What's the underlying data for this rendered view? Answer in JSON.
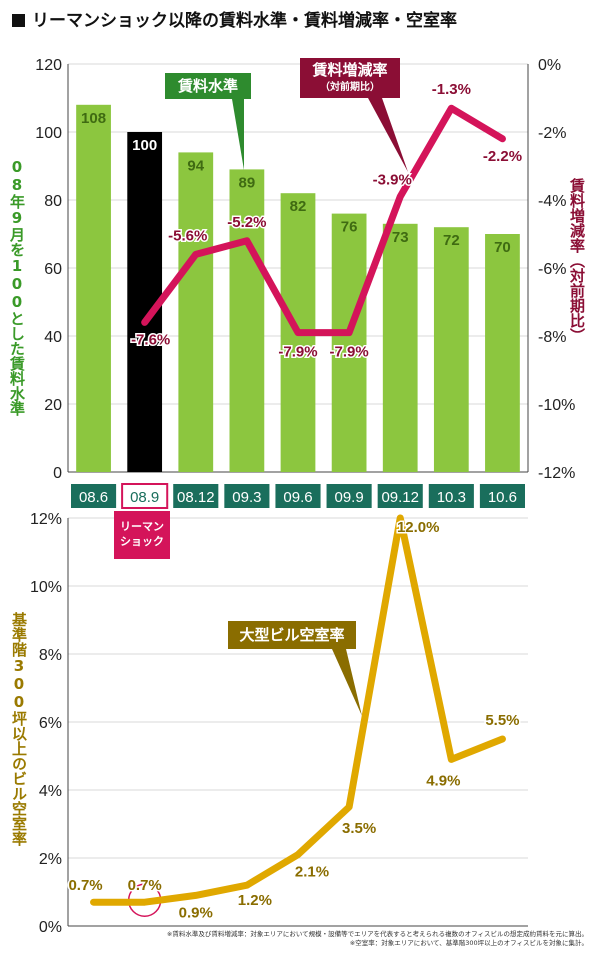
{
  "title": "リーマンショック以降の賃料水準・賃料増減率・空室率",
  "colors": {
    "bar": "#8cc63f",
    "bar_highlight": "#000000",
    "rent_line": "#d4145a",
    "rent_label": "#8b0e35",
    "vacancy_line": "#e0a800",
    "vacancy_label": "#8a6d00",
    "rent_level_label": "#3a9a28",
    "category_box": "#1a6e5c"
  },
  "top_left_axis_label": "08年9月を100とした賃料水準",
  "top_right_axis_label": "賃料増減率（対前期比）",
  "bottom_axis_label": "基準階300坪以上のビル空室率",
  "callouts": {
    "rent_level": "賃料水準",
    "rent_change": "賃料増減率",
    "rent_change_sub": "（対前期比）",
    "vacancy": "大型ビル空室率",
    "lehman": "リーマン\nショック"
  },
  "notes": [
    "※賃料水準及び賃料増減率：対象エリアにおいて規模・設備等でエリアを代表すると考えられる複数のオフィスビルの想定成約賃料を元に算出。",
    "※空室率：対象エリアにおいて、基準階300坪以上のオフィスビルを対象に集計。"
  ],
  "chart_data": [
    {
      "type": "bar",
      "categories": [
        "08.6",
        "08.9",
        "08.12",
        "09.3",
        "09.6",
        "09.9",
        "09.12",
        "10.3",
        "10.6"
      ],
      "series": [
        {
          "name": "賃料水準",
          "values": [
            108,
            100,
            94,
            89,
            82,
            76,
            73,
            72,
            70
          ]
        }
      ],
      "highlight_category": "08.9",
      "ylim": [
        0,
        120
      ],
      "yticks": [
        0,
        20,
        40,
        60,
        80,
        100,
        120
      ]
    },
    {
      "type": "line",
      "categories": [
        "08.9",
        "08.12",
        "09.3",
        "09.6",
        "09.9",
        "09.12",
        "10.3",
        "10.6"
      ],
      "series": [
        {
          "name": "賃料増減率",
          "values": [
            -7.6,
            -5.6,
            -5.2,
            -7.9,
            -7.9,
            -3.9,
            -1.3,
            -2.2
          ]
        }
      ],
      "labels": [
        "-7.6%",
        "-5.6%",
        "-5.2%",
        "-7.9%",
        "-7.9%",
        "-3.9%",
        "-1.3%",
        "-2.2%"
      ],
      "ylim": [
        -12,
        0
      ],
      "yticks": [
        "0%",
        "-2%",
        "-4%",
        "-6%",
        "-8%",
        "-10%",
        "-12%"
      ]
    },
    {
      "type": "line",
      "categories": [
        "08.6",
        "08.9",
        "08.12",
        "09.3",
        "09.6",
        "09.9",
        "09.12",
        "10.3",
        "10.6"
      ],
      "series": [
        {
          "name": "大型ビル空室率",
          "values": [
            0.7,
            0.7,
            0.9,
            1.2,
            2.1,
            3.5,
            12.0,
            4.9,
            5.5
          ]
        }
      ],
      "labels": [
        "0.7%",
        "0.7%",
        "0.9%",
        "1.2%",
        "2.1%",
        "3.5%",
        "12.0%",
        "4.9%",
        "5.5%"
      ],
      "ylim": [
        0,
        12
      ],
      "yticks": [
        "0%",
        "2%",
        "4%",
        "6%",
        "8%",
        "10%",
        "12%"
      ]
    }
  ]
}
